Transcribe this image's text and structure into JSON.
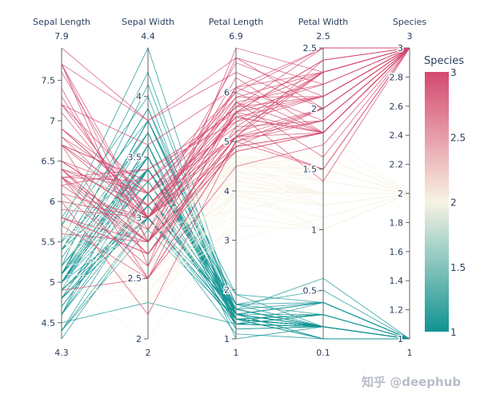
{
  "chart_data": {
    "type": "parallel_coordinates",
    "color_dimension": "Species",
    "dimensions": [
      {
        "label": "Sepal Length",
        "range": [
          4.3,
          7.9
        ],
        "range_labels": [
          "4.3",
          "7.9"
        ],
        "ticks": [
          4.5,
          5,
          5.5,
          6,
          6.5,
          7,
          7.5
        ],
        "tick_labels": [
          "4.5",
          "5",
          "5.5",
          "6",
          "6.5",
          "7",
          "7.5"
        ]
      },
      {
        "label": "Sepal Width",
        "range": [
          2,
          4.4
        ],
        "range_labels": [
          "2",
          "4.4"
        ],
        "ticks": [
          2,
          2.5,
          3,
          3.5,
          4
        ],
        "tick_labels": [
          "2",
          "2.5",
          "3",
          "3.5",
          "4"
        ]
      },
      {
        "label": "Petal Length",
        "range": [
          1,
          6.9
        ],
        "range_labels": [
          "1",
          "6.9"
        ],
        "ticks": [
          1,
          2,
          3,
          4,
          5,
          6
        ],
        "tick_labels": [
          "1",
          "2",
          "3",
          "4",
          "5",
          "6"
        ]
      },
      {
        "label": "Petal Width",
        "range": [
          0.1,
          2.5
        ],
        "range_labels": [
          "0.1",
          "2.5"
        ],
        "ticks": [
          0.5,
          1,
          1.5,
          2,
          2.5
        ],
        "tick_labels": [
          "0.5",
          "1",
          "1.5",
          "2",
          "2.5"
        ]
      },
      {
        "label": "Species",
        "range": [
          1,
          3
        ],
        "range_labels": [
          "1",
          "3"
        ],
        "ticks": [
          1,
          1.2,
          1.4,
          1.6,
          1.8,
          2,
          2.2,
          2.4,
          2.6,
          2.8,
          3
        ],
        "tick_labels": [
          "1",
          "1.2",
          "1.4",
          "1.6",
          "1.8",
          "2",
          "2.2",
          "2.4",
          "2.6",
          "2.8",
          "3"
        ]
      }
    ],
    "records": [
      [
        5.1,
        3.5,
        1.4,
        0.2,
        1
      ],
      [
        4.9,
        3.0,
        1.4,
        0.2,
        1
      ],
      [
        4.7,
        3.2,
        1.3,
        0.2,
        1
      ],
      [
        4.6,
        3.1,
        1.5,
        0.2,
        1
      ],
      [
        5.0,
        3.6,
        1.4,
        0.2,
        1
      ],
      [
        5.4,
        3.9,
        1.7,
        0.4,
        1
      ],
      [
        4.6,
        3.4,
        1.4,
        0.3,
        1
      ],
      [
        5.0,
        3.4,
        1.5,
        0.2,
        1
      ],
      [
        4.4,
        2.9,
        1.4,
        0.2,
        1
      ],
      [
        4.9,
        3.1,
        1.5,
        0.1,
        1
      ],
      [
        5.4,
        3.7,
        1.5,
        0.2,
        1
      ],
      [
        4.8,
        3.4,
        1.6,
        0.2,
        1
      ],
      [
        4.8,
        3.0,
        1.4,
        0.1,
        1
      ],
      [
        4.3,
        3.0,
        1.1,
        0.1,
        1
      ],
      [
        5.8,
        4.0,
        1.2,
        0.2,
        1
      ],
      [
        5.7,
        4.4,
        1.5,
        0.4,
        1
      ],
      [
        5.4,
        3.9,
        1.3,
        0.4,
        1
      ],
      [
        5.1,
        3.5,
        1.4,
        0.3,
        1
      ],
      [
        5.7,
        3.8,
        1.7,
        0.3,
        1
      ],
      [
        5.1,
        3.8,
        1.5,
        0.3,
        1
      ],
      [
        5.4,
        3.4,
        1.7,
        0.2,
        1
      ],
      [
        5.1,
        3.7,
        1.5,
        0.4,
        1
      ],
      [
        4.6,
        3.6,
        1.0,
        0.2,
        1
      ],
      [
        5.1,
        3.3,
        1.7,
        0.5,
        1
      ],
      [
        4.8,
        3.4,
        1.9,
        0.2,
        1
      ],
      [
        5.0,
        3.0,
        1.6,
        0.2,
        1
      ],
      [
        5.0,
        3.4,
        1.6,
        0.4,
        1
      ],
      [
        5.2,
        3.5,
        1.5,
        0.2,
        1
      ],
      [
        5.2,
        3.4,
        1.4,
        0.2,
        1
      ],
      [
        4.7,
        3.2,
        1.6,
        0.2,
        1
      ],
      [
        4.8,
        3.1,
        1.6,
        0.2,
        1
      ],
      [
        5.4,
        3.4,
        1.5,
        0.4,
        1
      ],
      [
        5.2,
        4.1,
        1.5,
        0.1,
        1
      ],
      [
        5.5,
        4.2,
        1.4,
        0.2,
        1
      ],
      [
        4.9,
        3.1,
        1.5,
        0.2,
        1
      ],
      [
        5.0,
        3.2,
        1.2,
        0.2,
        1
      ],
      [
        5.5,
        3.5,
        1.3,
        0.2,
        1
      ],
      [
        4.9,
        3.6,
        1.4,
        0.1,
        1
      ],
      [
        4.4,
        3.0,
        1.3,
        0.2,
        1
      ],
      [
        5.1,
        3.4,
        1.5,
        0.2,
        1
      ],
      [
        5.0,
        3.5,
        1.3,
        0.3,
        1
      ],
      [
        4.5,
        2.3,
        1.3,
        0.3,
        1
      ],
      [
        4.4,
        3.2,
        1.3,
        0.2,
        1
      ],
      [
        5.0,
        3.5,
        1.6,
        0.6,
        1
      ],
      [
        5.1,
        3.8,
        1.9,
        0.4,
        1
      ],
      [
        4.8,
        3.0,
        1.4,
        0.3,
        1
      ],
      [
        5.1,
        3.8,
        1.6,
        0.2,
        1
      ],
      [
        4.6,
        3.2,
        1.4,
        0.2,
        1
      ],
      [
        5.3,
        3.7,
        1.5,
        0.2,
        1
      ],
      [
        5.0,
        3.3,
        1.4,
        0.2,
        1
      ],
      [
        7.0,
        3.2,
        4.7,
        1.4,
        2
      ],
      [
        6.4,
        3.2,
        4.5,
        1.5,
        2
      ],
      [
        6.9,
        3.1,
        4.9,
        1.5,
        2
      ],
      [
        5.5,
        2.3,
        4.0,
        1.3,
        2
      ],
      [
        6.5,
        2.8,
        4.6,
        1.5,
        2
      ],
      [
        5.7,
        2.8,
        4.5,
        1.3,
        2
      ],
      [
        6.3,
        3.3,
        4.7,
        1.6,
        2
      ],
      [
        4.9,
        2.4,
        3.3,
        1.0,
        2
      ],
      [
        6.6,
        2.9,
        4.6,
        1.3,
        2
      ],
      [
        5.2,
        2.7,
        3.9,
        1.4,
        2
      ],
      [
        5.0,
        2.0,
        3.5,
        1.0,
        2
      ],
      [
        5.9,
        3.0,
        4.2,
        1.5,
        2
      ],
      [
        6.0,
        2.2,
        4.0,
        1.0,
        2
      ],
      [
        6.1,
        2.9,
        4.7,
        1.4,
        2
      ],
      [
        5.6,
        2.9,
        3.6,
        1.3,
        2
      ],
      [
        6.7,
        3.1,
        4.4,
        1.4,
        2
      ],
      [
        5.6,
        3.0,
        4.5,
        1.5,
        2
      ],
      [
        5.8,
        2.7,
        4.1,
        1.0,
        2
      ],
      [
        6.2,
        2.2,
        4.5,
        1.5,
        2
      ],
      [
        5.6,
        2.5,
        3.9,
        1.1,
        2
      ],
      [
        5.9,
        3.2,
        4.8,
        1.8,
        2
      ],
      [
        6.1,
        2.8,
        4.0,
        1.3,
        2
      ],
      [
        6.3,
        2.5,
        4.9,
        1.5,
        2
      ],
      [
        6.1,
        2.8,
        4.7,
        1.2,
        2
      ],
      [
        6.4,
        2.9,
        4.3,
        1.3,
        2
      ],
      [
        6.6,
        3.0,
        4.4,
        1.4,
        2
      ],
      [
        6.8,
        2.8,
        4.8,
        1.4,
        2
      ],
      [
        6.7,
        3.0,
        5.0,
        1.7,
        2
      ],
      [
        6.0,
        2.9,
        4.5,
        1.5,
        2
      ],
      [
        5.7,
        2.6,
        3.5,
        1.0,
        2
      ],
      [
        5.5,
        2.4,
        3.8,
        1.1,
        2
      ],
      [
        5.5,
        2.4,
        3.7,
        1.0,
        2
      ],
      [
        5.8,
        2.7,
        3.9,
        1.2,
        2
      ],
      [
        6.0,
        2.7,
        5.1,
        1.6,
        2
      ],
      [
        5.4,
        3.0,
        4.5,
        1.5,
        2
      ],
      [
        6.0,
        3.4,
        4.5,
        1.6,
        2
      ],
      [
        6.7,
        3.1,
        4.7,
        1.5,
        2
      ],
      [
        6.3,
        2.3,
        4.4,
        1.3,
        2
      ],
      [
        5.6,
        3.0,
        4.1,
        1.3,
        2
      ],
      [
        5.5,
        2.5,
        4.0,
        1.3,
        2
      ],
      [
        5.5,
        2.6,
        4.4,
        1.2,
        2
      ],
      [
        6.1,
        3.0,
        4.6,
        1.4,
        2
      ],
      [
        5.8,
        2.6,
        4.0,
        1.2,
        2
      ],
      [
        5.0,
        2.3,
        3.3,
        1.0,
        2
      ],
      [
        5.6,
        2.7,
        4.2,
        1.3,
        2
      ],
      [
        5.7,
        3.0,
        4.2,
        1.2,
        2
      ],
      [
        5.7,
        2.9,
        4.2,
        1.3,
        2
      ],
      [
        6.2,
        2.9,
        4.3,
        1.3,
        2
      ],
      [
        5.1,
        2.5,
        3.0,
        1.1,
        2
      ],
      [
        5.7,
        2.8,
        4.1,
        1.3,
        2
      ],
      [
        6.3,
        3.3,
        6.0,
        2.5,
        3
      ],
      [
        5.8,
        2.7,
        5.1,
        1.9,
        3
      ],
      [
        7.1,
        3.0,
        5.9,
        2.1,
        3
      ],
      [
        6.3,
        2.9,
        5.6,
        1.8,
        3
      ],
      [
        6.5,
        3.0,
        5.8,
        2.2,
        3
      ],
      [
        7.6,
        3.0,
        6.6,
        2.1,
        3
      ],
      [
        4.9,
        2.5,
        4.5,
        1.7,
        3
      ],
      [
        7.3,
        2.9,
        6.3,
        1.8,
        3
      ],
      [
        6.7,
        2.5,
        5.8,
        1.8,
        3
      ],
      [
        7.2,
        3.6,
        6.1,
        2.5,
        3
      ],
      [
        6.5,
        3.2,
        5.1,
        2.0,
        3
      ],
      [
        6.4,
        2.7,
        5.3,
        1.9,
        3
      ],
      [
        6.8,
        3.0,
        5.5,
        2.1,
        3
      ],
      [
        5.7,
        2.5,
        5.0,
        2.0,
        3
      ],
      [
        5.8,
        2.8,
        5.1,
        2.4,
        3
      ],
      [
        6.4,
        3.2,
        5.3,
        2.3,
        3
      ],
      [
        6.5,
        3.0,
        5.5,
        1.8,
        3
      ],
      [
        7.7,
        3.8,
        6.7,
        2.2,
        3
      ],
      [
        7.7,
        2.6,
        6.9,
        2.3,
        3
      ],
      [
        6.0,
        2.2,
        5.0,
        1.5,
        3
      ],
      [
        6.9,
        3.2,
        5.7,
        2.3,
        3
      ],
      [
        5.6,
        2.8,
        4.9,
        2.0,
        3
      ],
      [
        7.7,
        2.8,
        6.7,
        2.0,
        3
      ],
      [
        6.3,
        2.7,
        4.9,
        1.8,
        3
      ],
      [
        6.7,
        3.3,
        5.7,
        2.1,
        3
      ],
      [
        7.2,
        3.2,
        6.0,
        1.8,
        3
      ],
      [
        6.2,
        2.8,
        4.8,
        1.8,
        3
      ],
      [
        6.1,
        3.0,
        4.9,
        1.8,
        3
      ],
      [
        6.4,
        2.8,
        5.6,
        2.1,
        3
      ],
      [
        7.2,
        3.0,
        5.8,
        1.6,
        3
      ],
      [
        7.4,
        2.8,
        6.1,
        1.9,
        3
      ],
      [
        7.9,
        3.8,
        6.4,
        2.0,
        3
      ],
      [
        6.4,
        2.8,
        5.6,
        2.2,
        3
      ],
      [
        6.3,
        2.8,
        5.1,
        1.5,
        3
      ],
      [
        6.1,
        2.6,
        5.6,
        1.4,
        3
      ],
      [
        7.7,
        3.0,
        6.1,
        2.3,
        3
      ],
      [
        6.3,
        3.4,
        5.6,
        2.4,
        3
      ],
      [
        6.4,
        3.1,
        5.5,
        1.8,
        3
      ],
      [
        6.0,
        3.0,
        4.8,
        1.8,
        3
      ],
      [
        6.9,
        3.1,
        5.4,
        2.1,
        3
      ],
      [
        6.7,
        3.1,
        5.6,
        2.4,
        3
      ],
      [
        6.9,
        3.1,
        5.1,
        2.3,
        3
      ],
      [
        5.8,
        2.7,
        5.1,
        1.9,
        3
      ],
      [
        6.8,
        3.2,
        5.9,
        2.3,
        3
      ],
      [
        6.7,
        3.3,
        5.7,
        2.5,
        3
      ],
      [
        6.7,
        3.0,
        5.2,
        2.3,
        3
      ],
      [
        6.3,
        2.5,
        5.0,
        1.9,
        3
      ],
      [
        6.5,
        3.0,
        5.2,
        2.0,
        3
      ],
      [
        6.2,
        3.4,
        5.4,
        2.3,
        3
      ],
      [
        5.9,
        3.0,
        5.1,
        1.8,
        3
      ]
    ],
    "colorbar": {
      "title": "Species",
      "range": [
        1,
        3
      ],
      "ticks": [
        1,
        1.5,
        2,
        2.5,
        3
      ],
      "tick_labels": [
        "1",
        "1.5",
        "2",
        "2.5",
        "3"
      ],
      "colorscale": [
        "#109393",
        "#f7f3e3",
        "#d4486f"
      ]
    }
  },
  "watermark": {
    "text": "知乎 @deephub"
  }
}
